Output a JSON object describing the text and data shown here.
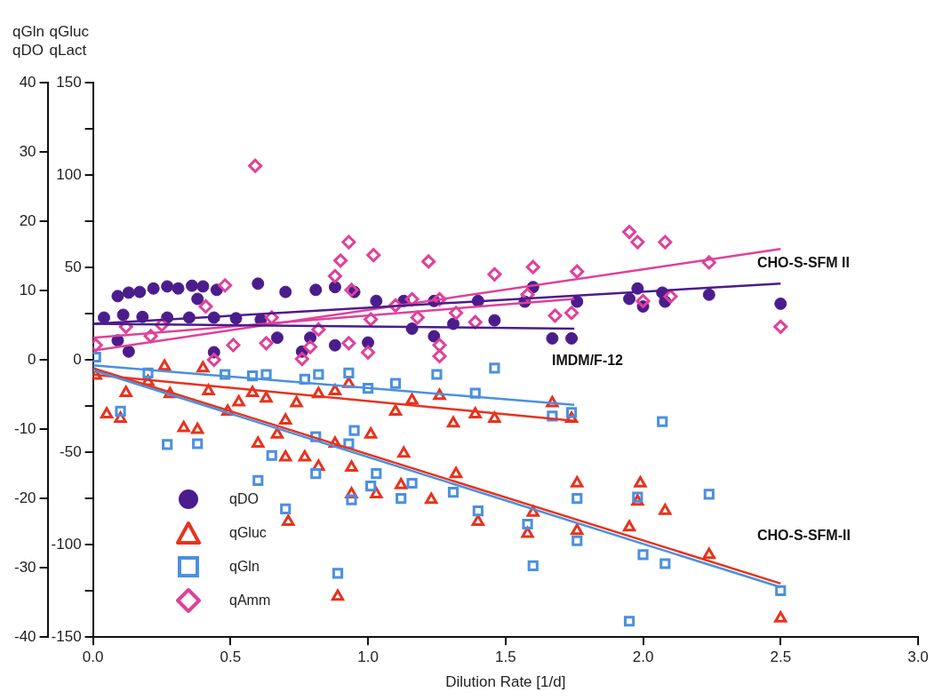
{
  "chart_data": {
    "type": "scatter",
    "xlabel": "Dilution Rate [1/d]",
    "ylabel": "qGln qDO",
    "y2label": "qGluc qLact",
    "xlim": [
      0,
      3
    ],
    "xticks": [
      {
        "value": 0,
        "label": "0.0"
      },
      0.5,
      {
        "value": 1,
        "label": "1.0"
      },
      1.5,
      {
        "value": 2,
        "label": "2.0"
      },
      2.5,
      {
        "value": 3,
        "label": "3.0"
      }
    ],
    "ylim": [
      -40,
      40
    ],
    "yticks": [
      -40,
      -30,
      -20,
      -10,
      0,
      10,
      20,
      30,
      40
    ],
    "y2lim": [
      -150,
      150
    ],
    "y2ticks": [
      -150,
      {
        "value": -125,
        "label": null
      },
      -100,
      {
        "value": -75,
        "label": null
      },
      -50,
      {
        "value": -25,
        "label": null
      },
      0,
      {
        "value": 25,
        "label": null
      },
      50,
      {
        "value": 75,
        "label": null
      },
      100,
      {
        "value": 125,
        "label": null
      },
      150
    ],
    "grid": false,
    "legend": "bottom left",
    "annotations": [
      "CHO-S-SFM II",
      "IMDM/F-12",
      "CHO-S-SFM-II"
    ],
    "series": [
      {
        "name": "qDO",
        "color": "#4b1c8c",
        "marker": "circle",
        "x": [
          0.09,
          0.13,
          0.17,
          0.22,
          0.27,
          0.31,
          0.36,
          0.4,
          0.45,
          0.38,
          0.04,
          0.11,
          0.18,
          0.27,
          0.35,
          0.44,
          0.52,
          0.61,
          0.09,
          0.13,
          0.44,
          0.67,
          0.76,
          0.79,
          0.88,
          1.0,
          1.16,
          1.24,
          1.31,
          1.46,
          0.6,
          0.7,
          0.81,
          0.88,
          0.95,
          1.03,
          1.13,
          1.24,
          1.4,
          1.6,
          1.57,
          1.76,
          1.67,
          1.74,
          1.95,
          1.98,
          2.0,
          2.07,
          2.08,
          2.24,
          2.5
        ],
        "values": [
          9.2,
          9.7,
          9.8,
          10.3,
          10.6,
          10.3,
          10.7,
          10.6,
          10.1,
          8.8,
          6.1,
          6.5,
          6.2,
          6.1,
          6.1,
          6.1,
          6.0,
          5.8,
          2.8,
          1.2,
          1.1,
          3.2,
          1.2,
          3.2,
          2.1,
          2.5,
          4.5,
          3.4,
          5.2,
          5.7,
          11.0,
          9.8,
          10.1,
          10.5,
          9.8,
          8.5,
          8.5,
          8.5,
          8.5,
          10.5,
          8.4,
          8.4,
          3.1,
          3.1,
          8.8,
          10.3,
          7.7,
          9.7,
          8.4,
          9.4,
          8.1
        ]
      },
      {
        "name": "qGluc",
        "color": "#e8321e",
        "marker": "triangle",
        "axis": "y2",
        "x": [
          0.01,
          0.05,
          0.1,
          0.12,
          0.2,
          0.26,
          0.28,
          0.33,
          0.38,
          0.4,
          0.42,
          0.49,
          0.53,
          0.58,
          0.63,
          0.6,
          0.67,
          0.7,
          0.7,
          0.71,
          0.74,
          0.77,
          0.82,
          0.82,
          0.88,
          0.88,
          0.89,
          0.93,
          0.94,
          0.94,
          1.01,
          1.03,
          1.1,
          1.13,
          1.12,
          1.16,
          1.23,
          1.26,
          1.31,
          1.32,
          1.4,
          1.39,
          1.46,
          1.67,
          1.74,
          1.76,
          1.99,
          1.98,
          2.08,
          1.6,
          1.58,
          1.76,
          1.95,
          2.24,
          2.5
        ],
        "values": [
          -8.5,
          -29.4,
          -31.8,
          -17.9,
          -11.9,
          -3.5,
          -18.4,
          -36.8,
          -37.8,
          -4.5,
          -16.9,
          -27.9,
          -22.9,
          -17.9,
          -20.9,
          -45.3,
          -40.3,
          -32.8,
          -52.7,
          -87.6,
          -23.4,
          -52.7,
          -18.4,
          -57.7,
          -45.3,
          -16.9,
          -128,
          -12.9,
          -58.2,
          -72.6,
          -40.3,
          -72.6,
          -27.9,
          -50.7,
          -67.7,
          -21.9,
          -75.6,
          -19.4,
          -34.3,
          -61.7,
          -87.6,
          -29.4,
          -31.8,
          -23.4,
          -31.8,
          -66.7,
          -66.7,
          -76.6,
          -81.6,
          -82.6,
          -94,
          -92.5,
          -90.5,
          -105.5,
          -139.8
        ]
      },
      {
        "name": "qGln",
        "color": "#4a90e2",
        "marker": "square",
        "x": [
          0.01,
          0.1,
          0.27,
          0.38,
          0.48,
          0.58,
          0.63,
          0.77,
          0.82,
          0.93,
          1.1,
          1.25,
          1.39,
          1.46,
          0.6,
          0.65,
          0.7,
          0.81,
          0.81,
          0.95,
          0.93,
          1.03,
          1.01,
          1.16,
          1.12,
          0.94,
          1.31,
          1.4,
          0.89,
          1.0,
          0.2,
          1.67,
          1.74,
          2.07,
          2.24,
          1.76,
          1.98,
          1.58,
          1.76,
          1.6,
          2.0,
          2.08,
          2.5,
          1.95
        ],
        "values": [
          0.4,
          -7.4,
          -12.2,
          -12.1,
          -2.1,
          -2.3,
          -2.1,
          -2.8,
          -2.1,
          -1.9,
          -3.4,
          -2.1,
          -4.8,
          -1.2,
          -17.4,
          -13.8,
          -21.5,
          -11.1,
          -16.4,
          -10.2,
          -12.1,
          -16.4,
          -18.2,
          -17.8,
          -20,
          -20.2,
          -19.1,
          -21.8,
          -30.8,
          -4.1,
          -1.9,
          -8.1,
          -7.6,
          -8.9,
          -19.4,
          -20,
          -19.8,
          -23.7,
          -26.1,
          -29.7,
          -28.1,
          -29.4,
          -33.3,
          -37.7
        ]
      },
      {
        "name": "qAmm",
        "color": "#e0409a",
        "marker": "diamond",
        "axis": "y2",
        "x": [
          0.59,
          0.93,
          1.02,
          0.9,
          1.22,
          1.46,
          0.88,
          0.48,
          0.41,
          0.12,
          0.01,
          0.21,
          0.25,
          0.51,
          0.63,
          0.79,
          0.76,
          0.93,
          1.0,
          1.26,
          1.26,
          1.26,
          1.16,
          1.32,
          1.39,
          1.01,
          1.18,
          1.1,
          0.94,
          0.65,
          0.82,
          0.44,
          1.6,
          1.76,
          1.58,
          1.68,
          1.74,
          1.95,
          1.98,
          2.08,
          2.24,
          2.0,
          2.1,
          2.5
        ],
        "values": [
          105,
          63.7,
          56.7,
          53.7,
          53.2,
          46.3,
          45.3,
          40.3,
          28.9,
          17.9,
          8,
          12.9,
          18.9,
          8,
          9,
          7,
          0.5,
          9,
          4,
          8,
          2,
          32.8,
          32.8,
          25.4,
          20.4,
          21.9,
          22.9,
          29.4,
          37.8,
          22.9,
          16.4,
          0,
          50.2,
          47.8,
          35.3,
          23.9,
          25.4,
          69.2,
          63.7,
          63.7,
          52.7,
          31.8,
          34.3,
          17.9
        ]
      },
      {
        "type": "line",
        "color": "#4b1c8c",
        "marker": "none",
        "x": [
          0,
          1.75
        ],
        "values": [
          5.2,
          4.5
        ]
      },
      {
        "type": "line",
        "color": "#4b1c8c",
        "marker": "none",
        "x": [
          0,
          2.5
        ],
        "values": [
          5.2,
          11
        ]
      },
      {
        "type": "line",
        "color": "#e0409a",
        "marker": "none",
        "axis": "y2",
        "x": [
          0,
          1.75
        ],
        "values": [
          12,
          33
        ]
      },
      {
        "type": "line",
        "color": "#e0409a",
        "marker": "none",
        "axis": "y2",
        "x": [
          0,
          2.5
        ],
        "values": [
          5,
          60
        ]
      },
      {
        "type": "line",
        "color": "#4a90e2",
        "marker": "none",
        "x": [
          0,
          1.75
        ],
        "values": [
          -0.8,
          -6.5
        ]
      },
      {
        "type": "line",
        "color": "#4a90e2",
        "marker": "none",
        "x": [
          0,
          2.5
        ],
        "values": [
          -1.5,
          -32.8
        ]
      },
      {
        "type": "line",
        "color": "#e8321e",
        "marker": "none",
        "axis": "y2",
        "x": [
          0,
          1.75
        ],
        "values": [
          -8,
          -33
        ]
      },
      {
        "type": "line",
        "color": "#e8321e",
        "marker": "none",
        "axis": "y2",
        "x": [
          0,
          2.5
        ],
        "values": [
          -4.5,
          -121
        ]
      }
    ]
  }
}
